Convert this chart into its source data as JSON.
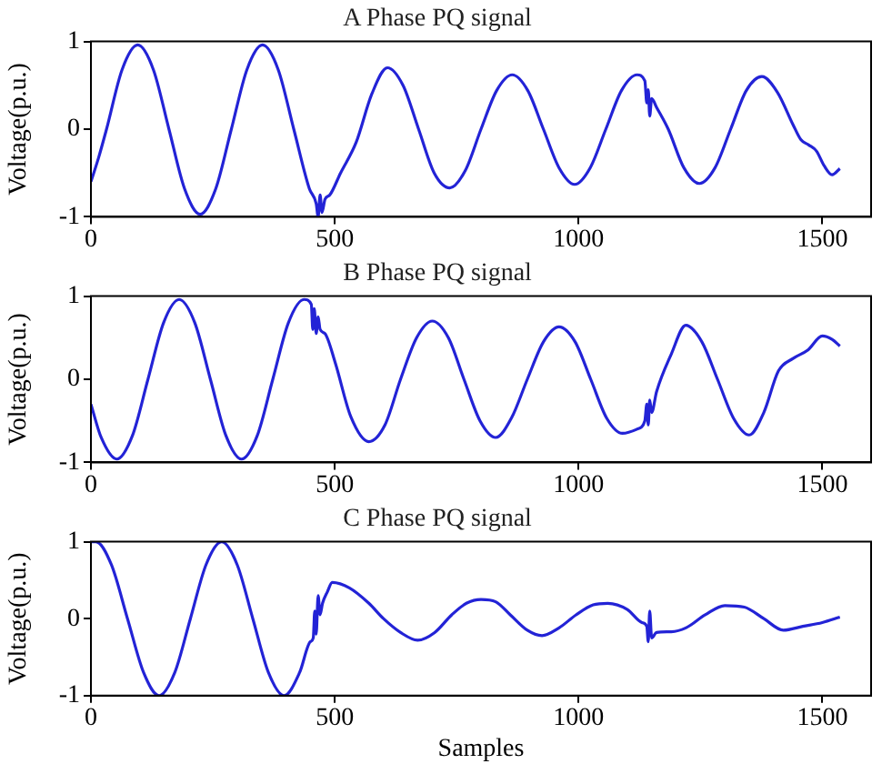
{
  "chart_data": [
    {
      "type": "line",
      "title": "A Phase PQ signal",
      "ylabel": "Voltage(p.u.)",
      "xlim": [
        0,
        1600
      ],
      "xticks": [
        0,
        500,
        1000,
        1500
      ],
      "ylim": [
        -1,
        1
      ],
      "yticks": [
        -1,
        0,
        1
      ],
      "grid": false,
      "legend": false,
      "series": [
        {
          "color": "#2323d6",
          "x": [
            0,
            16,
            32,
            64,
            96,
            128,
            160,
            192,
            224,
            256,
            288,
            320,
            352,
            384,
            416,
            448,
            462,
            466,
            470,
            474,
            480,
            490,
            512,
            544,
            576,
            608,
            640,
            672,
            704,
            736,
            768,
            800,
            832,
            864,
            896,
            928,
            960,
            992,
            1024,
            1056,
            1088,
            1120,
            1136,
            1140,
            1143,
            1146,
            1150,
            1160,
            1184,
            1216,
            1248,
            1280,
            1312,
            1344,
            1376,
            1408,
            1440,
            1456,
            1472,
            1488,
            1504,
            1520,
            1536
          ],
          "values": [
            -0.6,
            -0.32,
            0,
            0.68,
            0.96,
            0.68,
            0,
            -0.68,
            -0.97,
            -0.68,
            0,
            0.68,
            0.96,
            0.68,
            0,
            -0.68,
            -0.85,
            -1.0,
            -0.75,
            -0.95,
            -0.8,
            -0.75,
            -0.5,
            -0.15,
            0.4,
            0.7,
            0.5,
            0,
            -0.5,
            -0.67,
            -0.47,
            0,
            0.44,
            0.62,
            0.44,
            0,
            -0.44,
            -0.63,
            -0.44,
            0,
            0.44,
            0.62,
            0.55,
            0.3,
            0.45,
            0.15,
            0.35,
            0.25,
            0,
            -0.44,
            -0.62,
            -0.44,
            0,
            0.44,
            0.6,
            0.42,
            0.05,
            -0.12,
            -0.18,
            -0.25,
            -0.42,
            -0.52,
            -0.45
          ]
        }
      ]
    },
    {
      "type": "line",
      "title": "B Phase PQ signal",
      "ylabel": "Voltage(p.u.)",
      "xlim": [
        0,
        1600
      ],
      "xticks": [
        0,
        500,
        1000,
        1500
      ],
      "ylim": [
        -1,
        1
      ],
      "yticks": [
        -1,
        0,
        1
      ],
      "grid": false,
      "legend": false,
      "series": [
        {
          "color": "#2323d6",
          "x": [
            0,
            21,
            53,
            85,
            117,
            149,
            181,
            213,
            245,
            277,
            309,
            341,
            373,
            405,
            437,
            452,
            455,
            458,
            462,
            466,
            470,
            480,
            501,
            533,
            570,
            603,
            635,
            668,
            700,
            733,
            765,
            798,
            830,
            863,
            895,
            928,
            960,
            993,
            1025,
            1058,
            1090,
            1120,
            1136,
            1140,
            1143,
            1146,
            1150,
            1160,
            1190,
            1220,
            1253,
            1285,
            1318,
            1350,
            1380,
            1410,
            1440,
            1470,
            1500,
            1520,
            1536
          ],
          "values": [
            -0.3,
            -0.7,
            -0.96,
            -0.68,
            0,
            0.68,
            0.96,
            0.68,
            0,
            -0.68,
            -0.96,
            -0.68,
            0,
            0.68,
            0.96,
            0.9,
            0.6,
            0.85,
            0.55,
            0.75,
            0.6,
            0.55,
            0.2,
            -0.45,
            -0.75,
            -0.55,
            0,
            0.5,
            0.7,
            0.5,
            0,
            -0.5,
            -0.7,
            -0.46,
            0,
            0.45,
            0.63,
            0.45,
            0,
            -0.47,
            -0.65,
            -0.6,
            -0.5,
            -0.3,
            -0.55,
            -0.25,
            -0.4,
            -0.15,
            0.3,
            0.65,
            0.45,
            0,
            -0.47,
            -0.67,
            -0.4,
            0.1,
            0.25,
            0.35,
            0.52,
            0.48,
            0.4
          ]
        }
      ]
    },
    {
      "type": "line",
      "title": "C Phase PQ signal",
      "xlabel": "Samples",
      "ylabel": "Voltage(p.u.)",
      "xlim": [
        0,
        1600
      ],
      "xticks": [
        0,
        500,
        1000,
        1500
      ],
      "ylim": [
        -1,
        1
      ],
      "yticks": [
        -1,
        0,
        1
      ],
      "grid": false,
      "legend": false,
      "series": [
        {
          "color": "#2323d6",
          "x": [
            0,
            10,
            42,
            75,
            108,
            140,
            172,
            204,
            236,
            268,
            300,
            332,
            364,
            396,
            428,
            450,
            456,
            459,
            462,
            466,
            470,
            475,
            485,
            495,
            530,
            570,
            600,
            635,
            670,
            705,
            740,
            770,
            800,
            830,
            860,
            895,
            925,
            960,
            995,
            1030,
            1060,
            1100,
            1130,
            1140,
            1143,
            1146,
            1150,
            1160,
            1190,
            1220,
            1260,
            1300,
            1340,
            1380,
            1420,
            1460,
            1500,
            1536
          ],
          "values": [
            1.0,
            1.0,
            0.7,
            0,
            -0.7,
            -1.0,
            -0.7,
            0,
            0.7,
            1.0,
            0.7,
            0,
            -0.7,
            -1.0,
            -0.7,
            -0.3,
            -0.25,
            0.1,
            -0.2,
            0.3,
            0.05,
            0.2,
            0.35,
            0.47,
            0.4,
            0.2,
            0,
            -0.18,
            -0.28,
            -0.18,
            0.05,
            0.2,
            0.25,
            0.22,
            0.05,
            -0.15,
            -0.22,
            -0.12,
            0.05,
            0.18,
            0.2,
            0.12,
            -0.05,
            -0.1,
            -0.3,
            0.1,
            -0.25,
            -0.18,
            -0.17,
            -0.12,
            0.05,
            0.17,
            0.15,
            0,
            -0.15,
            -0.1,
            -0.05,
            0.02
          ]
        }
      ]
    }
  ]
}
